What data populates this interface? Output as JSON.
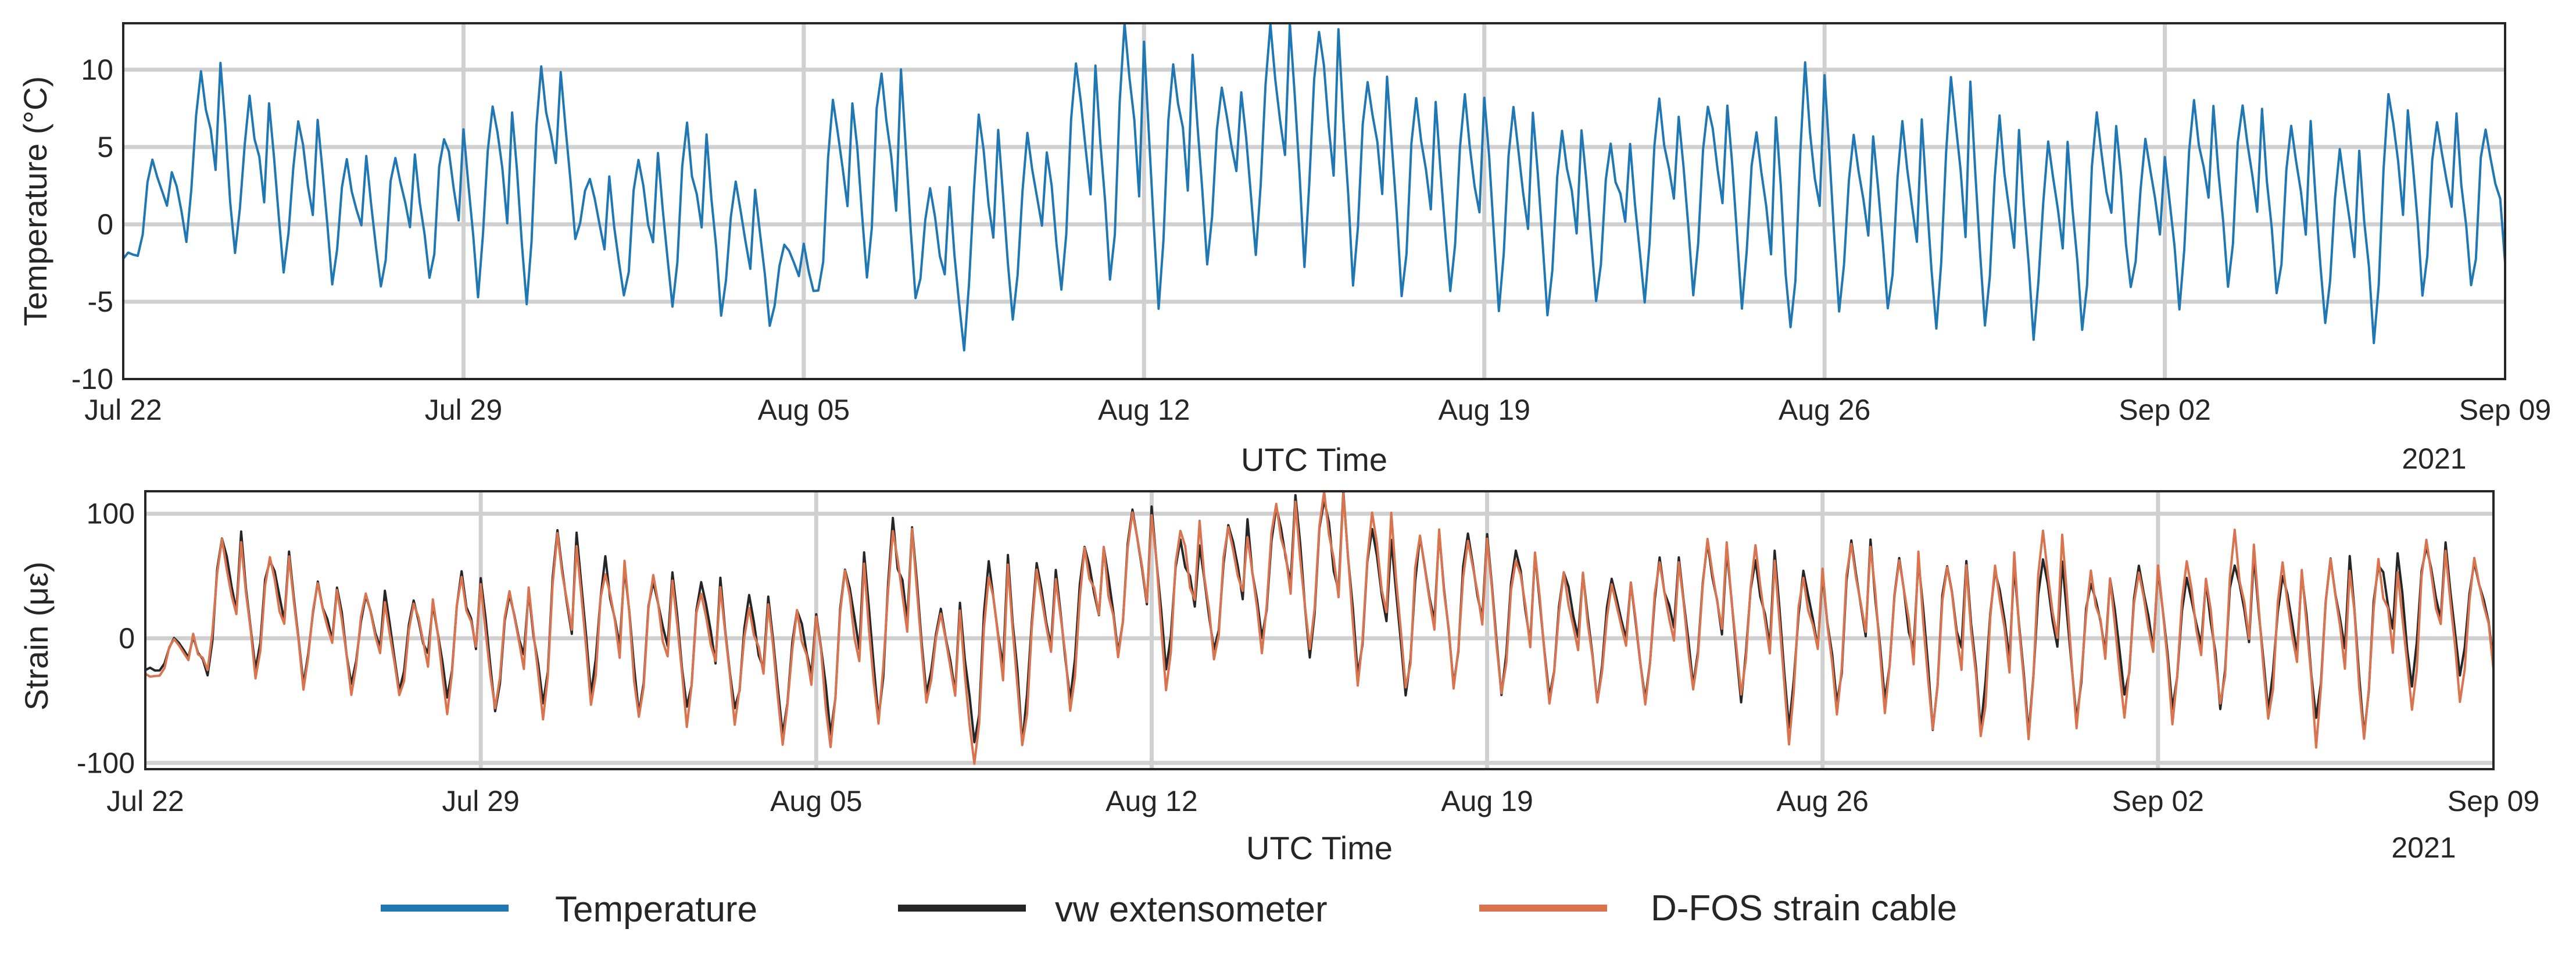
{
  "colors": {
    "temperature": "#1f77b4",
    "vw_extensometer": "#262626",
    "dfos": "#d9744f",
    "grid": "#d0d0d0",
    "axis": "#262626"
  },
  "chart_data": [
    {
      "type": "line",
      "xlabel": "UTC Time",
      "ylabel": "Temperature (°C)",
      "year": "2021",
      "xlim": [
        0,
        49
      ],
      "ylim": [
        -10,
        13
      ],
      "yticks": [
        -10,
        -5,
        0,
        5,
        10
      ],
      "ytick_labels": [
        "-10",
        "-5",
        "0",
        "5",
        "10"
      ],
      "xticks": [
        0,
        7,
        14,
        21,
        28,
        35,
        42,
        49
      ],
      "xtick_labels": [
        "Jul 22",
        "Jul 29",
        "Aug 05",
        "Aug 12",
        "Aug 19",
        "Aug 26",
        "Sep 02",
        "Sep 09"
      ],
      "grid": true,
      "series": [
        {
          "name": "Temperature",
          "color": "#1f77b4",
          "daily_peaks": [
            4,
            10,
            8,
            6.5,
            4,
            4.5,
            6,
            8,
            10,
            3,
            4,
            6,
            2.5,
            -1,
            8,
            10,
            2,
            6.5,
            5.5,
            10,
            12.5,
            10.5,
            9,
            12.5,
            13,
            10,
            8,
            8,
            7,
            6,
            5,
            7.5,
            8,
            6.5,
            9.5,
            6,
            6,
            9,
            6.5,
            5,
            6.5,
            5,
            7.5,
            7.5,
            6.5,
            5,
            8,
            7,
            6.5
          ],
          "daily_troughs": [
            -2,
            -1,
            -2,
            -3,
            -3.5,
            -4,
            -4,
            -4,
            -5.5,
            -1,
            -5,
            -5.5,
            -6,
            -6.5,
            -5,
            -3,
            -5,
            -8,
            -6.5,
            -5,
            -4,
            -5,
            -3,
            -1.5,
            -2,
            -3.5,
            -4.5,
            -4,
            -5,
            -5.5,
            -5,
            -4.5,
            -4,
            -5,
            -7.5,
            -6,
            -5.5,
            -7.5,
            -7,
            -7.5,
            -6.5,
            -4.5,
            -5,
            -4,
            -5,
            -6.5,
            -7,
            -4.5,
            -4.5
          ],
          "end_value": -2.5
        }
      ]
    },
    {
      "type": "line",
      "xlabel": "UTC Time",
      "ylabel": "Strain (με)",
      "year": "2021",
      "xlim": [
        0,
        49
      ],
      "ylim": [
        -105,
        118
      ],
      "yticks": [
        -100,
        0,
        100
      ],
      "ytick_labels": [
        "-100",
        "0",
        "100"
      ],
      "xticks": [
        0,
        7,
        14,
        21,
        28,
        35,
        42,
        49
      ],
      "xtick_labels": [
        "Jul 22",
        "Jul 29",
        "Aug 05",
        "Aug 12",
        "Aug 19",
        "Aug 26",
        "Sep 02",
        "Sep 09"
      ],
      "grid": true,
      "series": [
        {
          "name": "vw extensometer",
          "color": "#262626",
          "daily_peaks": [
            0,
            80,
            68,
            45,
            35,
            30,
            50,
            40,
            80,
            60,
            50,
            45,
            30,
            25,
            60,
            90,
            20,
            60,
            55,
            70,
            108,
            80,
            90,
            110,
            115,
            85,
            80,
            80,
            70,
            55,
            45,
            60,
            75,
            65,
            55,
            75,
            60,
            60,
            55,
            60,
            50,
            55,
            50,
            65,
            55,
            60,
            65,
            80,
            60
          ],
          "daily_troughs": [
            -25,
            -25,
            -30,
            -35,
            -40,
            -45,
            -50,
            -55,
            -55,
            -45,
            -60,
            -60,
            -60,
            -75,
            -75,
            -60,
            -45,
            -90,
            -80,
            -50,
            -10,
            -30,
            -15,
            -5,
            -10,
            -30,
            -40,
            -35,
            -45,
            -50,
            -50,
            -45,
            -40,
            -45,
            -70,
            -55,
            -50,
            -70,
            -70,
            -70,
            -60,
            -50,
            -55,
            -50,
            -55,
            -65,
            -70,
            -40,
            -35
          ],
          "end_value": -20
        },
        {
          "name": "D-FOS strain cable",
          "color": "#d9744f",
          "daily_peaks": [
            0,
            82,
            66,
            42,
            33,
            28,
            48,
            38,
            78,
            58,
            48,
            42,
            28,
            22,
            55,
            85,
            18,
            55,
            52,
            68,
            105,
            88,
            88,
            108,
            118,
            95,
            82,
            78,
            68,
            52,
            42,
            58,
            78,
            68,
            52,
            78,
            62,
            62,
            60,
            82,
            55,
            58,
            55,
            80,
            58,
            62,
            60,
            75,
            60
          ],
          "daily_troughs": [
            -30,
            -30,
            -35,
            -40,
            -45,
            -50,
            -55,
            -60,
            -65,
            -55,
            -70,
            -70,
            -70,
            -80,
            -85,
            -70,
            -50,
            -100,
            -90,
            -55,
            -15,
            -35,
            -20,
            -10,
            -15,
            -40,
            -45,
            -40,
            -50,
            -55,
            -55,
            -50,
            -45,
            -50,
            -85,
            -65,
            -60,
            -80,
            -85,
            -80,
            -70,
            -60,
            -65,
            -60,
            -70,
            -80,
            -85,
            -55,
            -45
          ],
          "end_value": -25
        }
      ]
    }
  ],
  "legend": {
    "items": [
      {
        "label": "Temperature",
        "color": "#1f77b4"
      },
      {
        "label": "vw extensometer",
        "color": "#262626"
      },
      {
        "label": "D-FOS strain cable",
        "color": "#d9744f"
      }
    ]
  }
}
